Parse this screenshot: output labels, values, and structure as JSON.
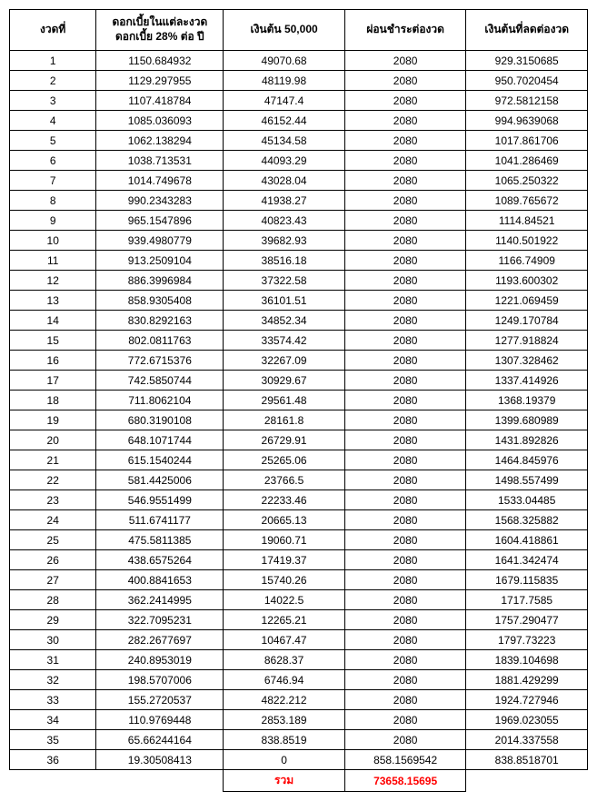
{
  "table": {
    "columns": [
      "งวดที่",
      "ดอกเบี้ยในแต่ละงวด\nดอกเบี้ย 28% ต่อ ปี",
      "เงินต้น 50,000",
      "ผ่อนชำระต่องวด",
      "เงินต้นที่ลดต่องวด"
    ],
    "col_widths": [
      "15%",
      "22%",
      "21%",
      "21%",
      "21%"
    ],
    "header_fontsize": 12,
    "header_fontweight": "bold",
    "border_color": "#000000",
    "background_color": "#ffffff",
    "text_color": "#000000",
    "sum_color": "#ff0000",
    "rows": [
      [
        "1",
        "1150.684932",
        "49070.68",
        "2080",
        "929.3150685"
      ],
      [
        "2",
        "1129.297955",
        "48119.98",
        "2080",
        "950.7020454"
      ],
      [
        "3",
        "1107.418784",
        "47147.4",
        "2080",
        "972.5812158"
      ],
      [
        "4",
        "1085.036093",
        "46152.44",
        "2080",
        "994.9639068"
      ],
      [
        "5",
        "1062.138294",
        "45134.58",
        "2080",
        "1017.861706"
      ],
      [
        "6",
        "1038.713531",
        "44093.29",
        "2080",
        "1041.286469"
      ],
      [
        "7",
        "1014.749678",
        "43028.04",
        "2080",
        "1065.250322"
      ],
      [
        "8",
        "990.2343283",
        "41938.27",
        "2080",
        "1089.765672"
      ],
      [
        "9",
        "965.1547896",
        "40823.43",
        "2080",
        "1114.84521"
      ],
      [
        "10",
        "939.4980779",
        "39682.93",
        "2080",
        "1140.501922"
      ],
      [
        "11",
        "913.2509104",
        "38516.18",
        "2080",
        "1166.74909"
      ],
      [
        "12",
        "886.3996984",
        "37322.58",
        "2080",
        "1193.600302"
      ],
      [
        "13",
        "858.9305408",
        "36101.51",
        "2080",
        "1221.069459"
      ],
      [
        "14",
        "830.8292163",
        "34852.34",
        "2080",
        "1249.170784"
      ],
      [
        "15",
        "802.0811763",
        "33574.42",
        "2080",
        "1277.918824"
      ],
      [
        "16",
        "772.6715376",
        "32267.09",
        "2080",
        "1307.328462"
      ],
      [
        "17",
        "742.5850744",
        "30929.67",
        "2080",
        "1337.414926"
      ],
      [
        "18",
        "711.8062104",
        "29561.48",
        "2080",
        "1368.19379"
      ],
      [
        "19",
        "680.3190108",
        "28161.8",
        "2080",
        "1399.680989"
      ],
      [
        "20",
        "648.1071744",
        "26729.91",
        "2080",
        "1431.892826"
      ],
      [
        "21",
        "615.1540244",
        "25265.06",
        "2080",
        "1464.845976"
      ],
      [
        "22",
        "581.4425006",
        "23766.5",
        "2080",
        "1498.557499"
      ],
      [
        "23",
        "546.9551499",
        "22233.46",
        "2080",
        "1533.04485"
      ],
      [
        "24",
        "511.6741177",
        "20665.13",
        "2080",
        "1568.325882"
      ],
      [
        "25",
        "475.5811385",
        "19060.71",
        "2080",
        "1604.418861"
      ],
      [
        "26",
        "438.6575264",
        "17419.37",
        "2080",
        "1641.342474"
      ],
      [
        "27",
        "400.8841653",
        "15740.26",
        "2080",
        "1679.115835"
      ],
      [
        "28",
        "362.2414995",
        "14022.5",
        "2080",
        "1717.7585"
      ],
      [
        "29",
        "322.7095231",
        "12265.21",
        "2080",
        "1757.290477"
      ],
      [
        "30",
        "282.2677697",
        "10467.47",
        "2080",
        "1797.73223"
      ],
      [
        "31",
        "240.8953019",
        "8628.37",
        "2080",
        "1839.104698"
      ],
      [
        "32",
        "198.5707006",
        "6746.94",
        "2080",
        "1881.429299"
      ],
      [
        "33",
        "155.2720537",
        "4822.212",
        "2080",
        "1924.727946"
      ],
      [
        "34",
        "110.9769448",
        "2853.189",
        "2080",
        "1969.023055"
      ],
      [
        "35",
        "65.66244164",
        "838.8519",
        "2080",
        "2014.337558"
      ],
      [
        "36",
        "19.30508413",
        "0",
        "858.1569542",
        "838.8518701"
      ]
    ],
    "summary": {
      "label": "รวม",
      "value": "73658.15695"
    }
  }
}
